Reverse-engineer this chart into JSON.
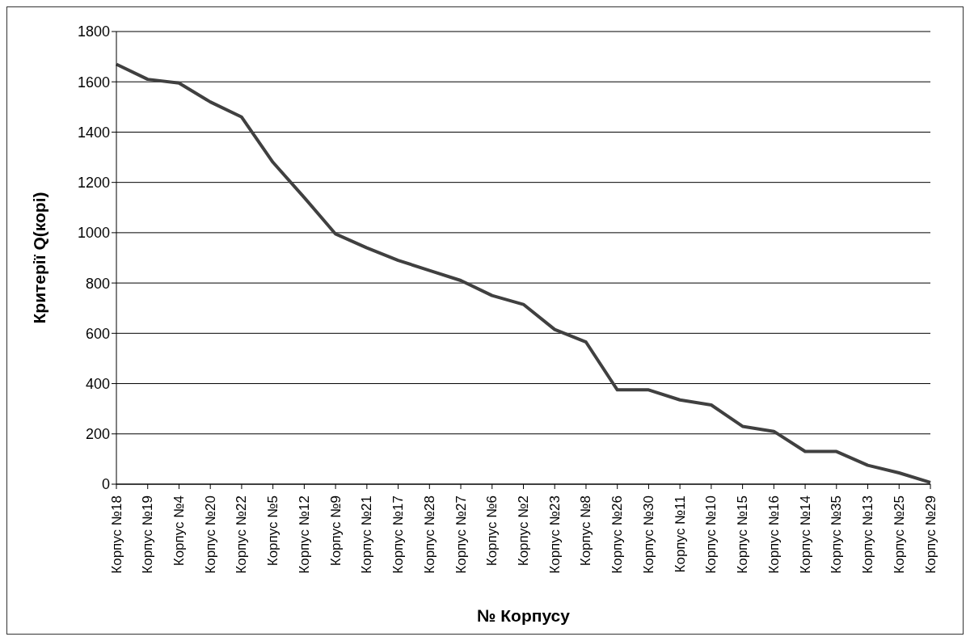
{
  "chart_data": {
    "type": "line",
    "xlabel": "№ Корпусу",
    "ylabel": "Критерії Q(корі)",
    "categories": [
      "Корпус №18",
      "Корпус №19",
      "Корпус №4",
      "Корпус №20",
      "Корпус №22",
      "Корпус №5",
      "Корпус №12",
      "Корпус №9",
      "Корпус №21",
      "Корпус №17",
      "Корпус №28",
      "Корпус №27",
      "Корпус №6",
      "Корпус №2",
      "Корпус №23",
      "Корпус №8",
      "Корпус №26",
      "Корпус №30",
      "Корпус №11",
      "Корпус №10",
      "Корпус №15",
      "Корпус №16",
      "Корпус №14",
      "Корпус №35",
      "Корпус №13",
      "Корпус №25",
      "Корпус №29"
    ],
    "series": [
      {
        "color": "#404040",
        "values": [
          1670,
          1610,
          1595,
          1520,
          1460,
          1280,
          1140,
          995,
          940,
          890,
          850,
          810,
          750,
          715,
          615,
          565,
          375,
          375,
          335,
          315,
          230,
          210,
          130,
          130,
          75,
          45,
          7
        ]
      }
    ],
    "ylim": [
      0,
      1800
    ],
    "yticks": [
      0,
      200,
      400,
      600,
      800,
      1000,
      1200,
      1400,
      1600,
      1800
    ],
    "grid": "y",
    "line_style": "solid"
  }
}
